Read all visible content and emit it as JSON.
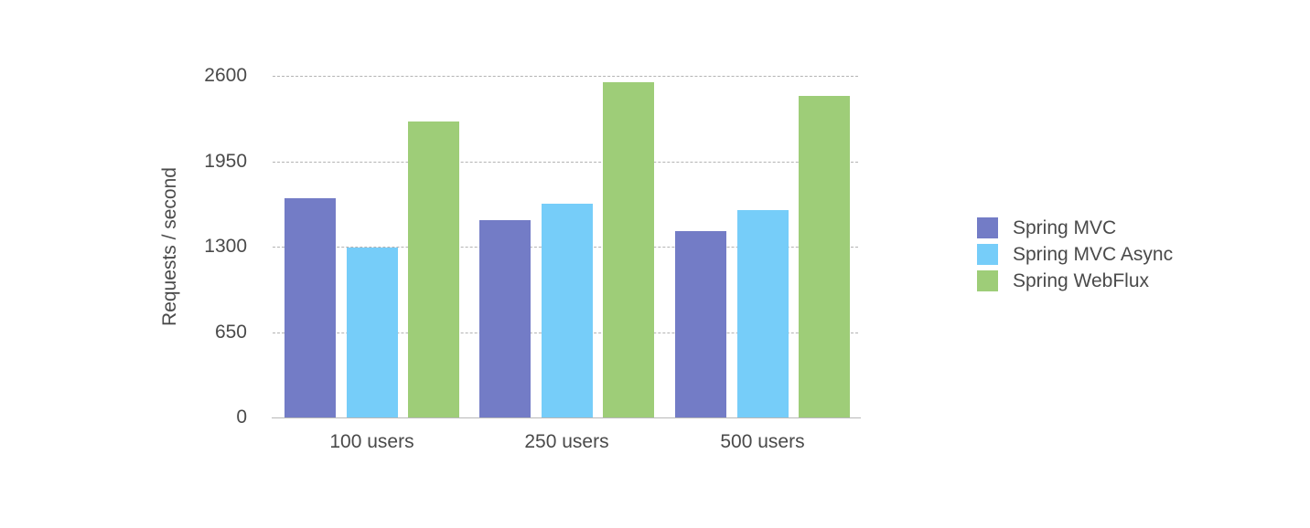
{
  "chart_data": {
    "type": "bar",
    "title": "",
    "xlabel": "",
    "ylabel": "Requests / second",
    "ylim": [
      0,
      2600
    ],
    "yticks": [
      0,
      650,
      1300,
      1950,
      2600
    ],
    "ytick_labels": [
      "0",
      "650",
      "1300",
      "1950",
      "2600"
    ],
    "grid": true,
    "legend_position": "right",
    "categories": [
      "100 users",
      "250 users",
      "500 users"
    ],
    "series": [
      {
        "name": "Spring MVC",
        "color": "#737cc6",
        "values": [
          1670,
          1500,
          1420
        ]
      },
      {
        "name": "Spring MVC Async",
        "color": "#76cdf9",
        "values": [
          1290,
          1630,
          1580
        ]
      },
      {
        "name": "Spring WebFlux",
        "color": "#9ecd78",
        "values": [
          2250,
          2550,
          2450
        ]
      }
    ]
  }
}
